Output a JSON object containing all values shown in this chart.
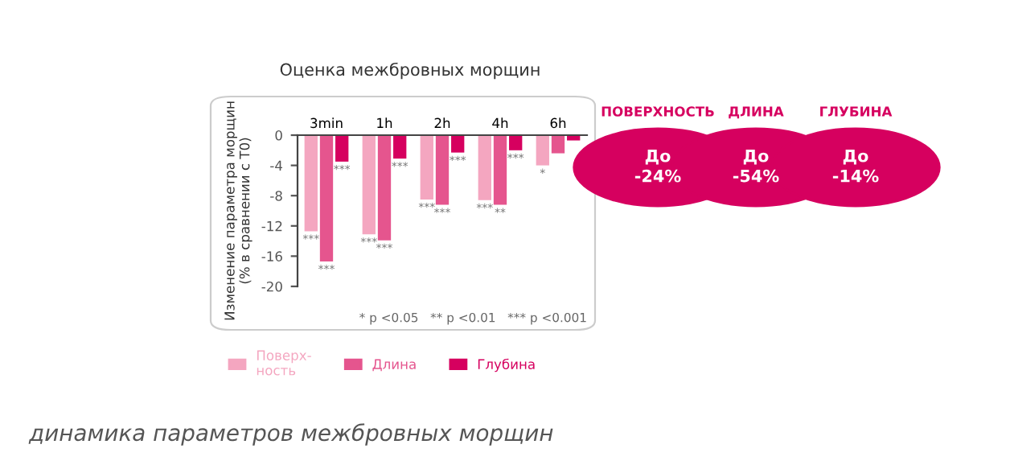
{
  "chart_data": {
    "type": "bar",
    "title": "Оценка межбровных морщин",
    "ylabel": "Изменение параметра морщин\n(% в сравнении с T0)",
    "categories": [
      "3min",
      "1h",
      "2h",
      "4h",
      "6h"
    ],
    "series": [
      {
        "name": "Поверх-\nность",
        "color": "#f4a6c0",
        "values": [
          -12.7,
          -13.1,
          -8.5,
          -8.6,
          -4.0
        ],
        "value_labels": [
          "***",
          "***",
          "***",
          "***",
          "*"
        ]
      },
      {
        "name": "Длина",
        "color": "#e5558e",
        "values": [
          -16.7,
          -13.9,
          -9.2,
          -9.2,
          -2.4
        ],
        "value_labels": [
          "***",
          "***",
          "***",
          "**",
          null
        ]
      },
      {
        "name": "Глубина",
        "color": "#d6005f",
        "values": [
          -3.5,
          -3.1,
          -2.3,
          -2.0,
          -0.7
        ],
        "value_labels": [
          "***",
          "***",
          "***",
          "***",
          null
        ]
      }
    ],
    "ylim": [
      -20,
      0
    ],
    "yticks": [
      -20,
      -16,
      -12,
      -8,
      -4,
      0
    ],
    "grid": false,
    "legend": "bottom left",
    "annotations": [
      "* p <0.05   ** p <0.01   *** p <0.001",
      "ПОВЕРХНОСТЬ",
      "До\n-24%",
      "ДЛИНА",
      "До\n-54%",
      "ГЛУБИНА",
      "До\n-14%",
      "динамика параметров межбровных морщин"
    ]
  }
}
